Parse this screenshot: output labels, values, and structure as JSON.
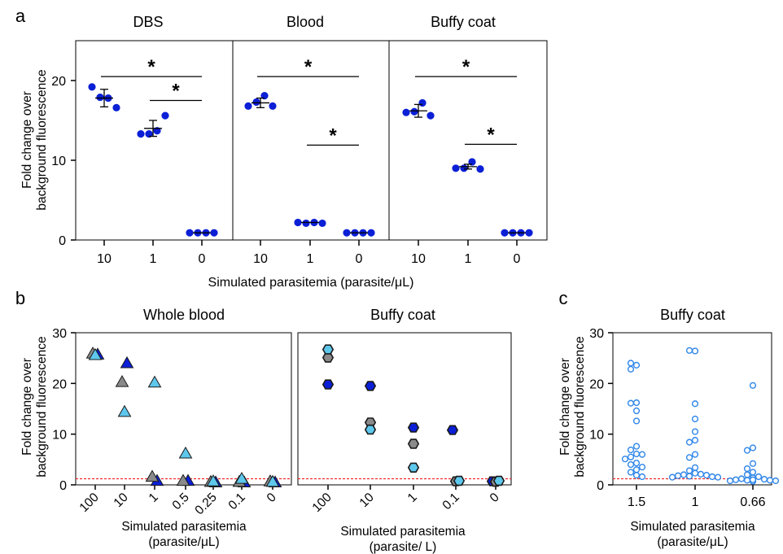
{
  "colors": {
    "dark_blue": "#0b1fd6",
    "sky_blue": "#5ec8ec",
    "gray": "#8a8a8a",
    "outline_blue": "#2f86e8",
    "threshold_red": "#ee2a2a"
  },
  "chart_data": [
    {
      "panel_label": "a",
      "type": "scatter",
      "ylabel_lines": [
        "Fold change over",
        "background fluorescence"
      ],
      "xlabel": "Simulated parasitemia (parasite/μL)",
      "ylim": [
        0,
        25
      ],
      "yticks": [
        "0",
        "10",
        "20"
      ],
      "significance_marker": "*",
      "subpanels": [
        {
          "title": "DBS",
          "categories": [
            "10",
            "1",
            "0"
          ],
          "values": [
            [
              19.2,
              17.9,
              17.8,
              16.6
            ],
            [
              13.3,
              13.3,
              13.7,
              15.6
            ],
            [
              0.9,
              0.9,
              0.9,
              0.9
            ]
          ],
          "means": [
            17.8,
            14.0,
            0.9
          ],
          "errors": [
            1.1,
            1.0,
            0.0
          ],
          "significance": [
            {
              "from": 0,
              "to": 2,
              "y": 20.5
            },
            {
              "from": 1,
              "to": 2,
              "y": 17.5
            }
          ]
        },
        {
          "title": "Blood",
          "categories": [
            "10",
            "1",
            "0"
          ],
          "values": [
            [
              16.8,
              17.3,
              18.1,
              16.8
            ],
            [
              2.2,
              2.1,
              2.2,
              2.1
            ],
            [
              0.9,
              0.9,
              0.9,
              0.9
            ]
          ],
          "means": [
            17.2,
            2.2,
            0.9
          ],
          "errors": [
            0.6,
            0.0,
            0.0
          ],
          "significance": [
            {
              "from": 0,
              "to": 2,
              "y": 20.5
            },
            {
              "from": 1,
              "to": 2,
              "y": 11.9
            }
          ]
        },
        {
          "title": "Buffy coat",
          "categories": [
            "10",
            "1",
            "0"
          ],
          "values": [
            [
              16.0,
              16.1,
              17.2,
              15.6
            ],
            [
              9.0,
              9.0,
              9.8,
              8.9
            ],
            [
              0.9,
              0.9,
              0.9,
              0.9
            ]
          ],
          "means": [
            16.2,
            9.2,
            0.9
          ],
          "errors": [
            0.8,
            0.3,
            0.0
          ],
          "significance": [
            {
              "from": 0,
              "to": 2,
              "y": 20.5
            },
            {
              "from": 1,
              "to": 2,
              "y": 12.0
            }
          ]
        }
      ]
    },
    {
      "panel_label": "b",
      "type": "scatter",
      "title": "Whole blood",
      "ylabel_lines": [
        "Fold change over",
        "background fluorescence"
      ],
      "xlabel_lines": [
        "Simulated parasitemia",
        "(parasite/μL)"
      ],
      "categories": [
        "100",
        "10",
        "1",
        "0.5",
        "0.25",
        "0.1",
        "0"
      ],
      "ylim": [
        0,
        30
      ],
      "yticks": [
        "0",
        "10",
        "20",
        "30"
      ],
      "threshold": 1.2,
      "marker": "triangle",
      "series": [
        {
          "color": "dark_blue",
          "values": [
            25.7,
            24.0,
            0.8,
            0.8,
            0.5,
            0.5,
            0.5
          ]
        },
        {
          "color": "gray",
          "values": [
            25.9,
            20.3,
            1.6,
            0.8,
            0.6,
            0.6,
            0.7
          ]
        },
        {
          "color": "sky_blue",
          "values": [
            25.6,
            14.4,
            20.2,
            6.2,
            0.7,
            1.2,
            0.6
          ]
        }
      ]
    },
    {
      "panel_label": "",
      "type": "scatter",
      "title": "Buffy coat",
      "xlabel_lines": [
        "Simulated parasitemia",
        "(parasite/   L)"
      ],
      "categories": [
        "100",
        "10",
        "1",
        "0.1",
        "0"
      ],
      "ylim": [
        0,
        30
      ],
      "threshold": 1.2,
      "marker": "hexagon",
      "series": [
        {
          "color": "dark_blue",
          "values": [
            19.8,
            19.5,
            11.3,
            10.8,
            0.7
          ]
        },
        {
          "color": "gray",
          "values": [
            25.1,
            12.3,
            8.1,
            0.7,
            0.6
          ]
        },
        {
          "color": "sky_blue",
          "values": [
            26.7,
            10.9,
            3.4,
            0.8,
            0.8
          ]
        }
      ]
    },
    {
      "panel_label": "c",
      "type": "scatter",
      "title": "Buffy coat",
      "ylabel_lines": [
        "Fold change over",
        "background fluorescence"
      ],
      "xlabel_lines": [
        "Simulated parasitemia",
        "(parasite/μL)"
      ],
      "categories": [
        "1.5",
        "1",
        "0.66"
      ],
      "ylim": [
        0,
        30
      ],
      "yticks": [
        "0",
        "10",
        "20",
        "30"
      ],
      "threshold": 1.2,
      "marker": "open-circle",
      "values": [
        [
          23.6,
          24.0,
          22.8,
          16.2,
          16.1,
          14.6,
          12.6,
          7.6,
          6.9,
          6.1,
          6.0,
          5.5,
          5.1,
          4.3,
          4.0,
          3.5,
          3.0,
          2.5,
          1.9,
          1.6
        ],
        [
          26.4,
          26.5,
          16.0,
          13.0,
          10.5,
          8.8,
          8.4,
          6.0,
          5.4,
          3.4,
          2.8,
          2.3,
          2.1,
          2.0,
          1.9,
          1.8,
          1.7,
          1.6,
          1.5,
          1.5
        ],
        [
          19.6,
          7.3,
          6.8,
          4.2,
          3.2,
          2.5,
          2.0,
          1.6,
          1.4,
          1.2,
          1.1,
          1.0,
          0.9,
          0.9,
          0.8,
          0.8,
          0.8,
          0.7,
          0.7,
          1.0
        ]
      ]
    }
  ]
}
